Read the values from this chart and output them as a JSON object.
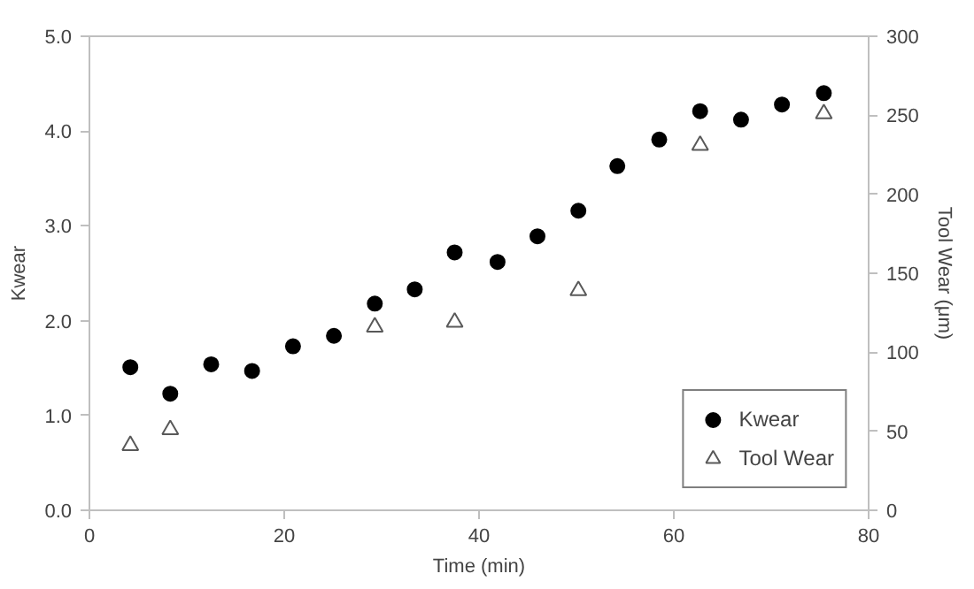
{
  "chart_data": {
    "type": "scatter",
    "xlabel": "Time (min)",
    "ylabel": "Kwear",
    "y2label": "Tool Wear (μm)",
    "xlim": [
      0,
      80
    ],
    "xticks": [
      0,
      20,
      40,
      60,
      80
    ],
    "ylim": [
      0,
      5
    ],
    "yticks": [
      {
        "value": 0,
        "label": "0.0"
      },
      {
        "value": 1,
        "label": "1.0"
      },
      {
        "value": 2,
        "label": "2.0"
      },
      {
        "value": 3,
        "label": "3.0"
      },
      {
        "value": 4,
        "label": "4.0"
      },
      {
        "value": 5,
        "label": "5.0"
      }
    ],
    "y2lim": [
      0,
      300
    ],
    "y2ticks": [
      0,
      50,
      100,
      150,
      200,
      250,
      300
    ],
    "grid": false,
    "legend": "bottom right",
    "series": [
      {
        "name": "Kwear",
        "color": "#000000",
        "marker": "circle",
        "x": [
          4.2,
          8.3,
          12.5,
          16.7,
          20.9,
          25.1,
          29.3,
          33.4,
          37.5,
          41.9,
          46,
          50.2,
          54.2,
          58.5,
          62.7,
          66.9,
          71.1,
          75.4
        ],
        "values": [
          1.51,
          1.23,
          1.54,
          1.47,
          1.73,
          1.84,
          2.18,
          2.33,
          2.72,
          2.62,
          2.89,
          3.16,
          3.63,
          3.91,
          4.21,
          4.12,
          4.28,
          4.4
        ]
      },
      {
        "name": "Tool Wear",
        "color": "#595959",
        "marker": "triangle",
        "axis": "y2",
        "x": [
          4.2,
          8.3,
          29.3,
          37.5,
          50.2,
          62.7,
          75.4
        ],
        "values": [
          41,
          51,
          116,
          119,
          139,
          231,
          251
        ]
      }
    ]
  }
}
